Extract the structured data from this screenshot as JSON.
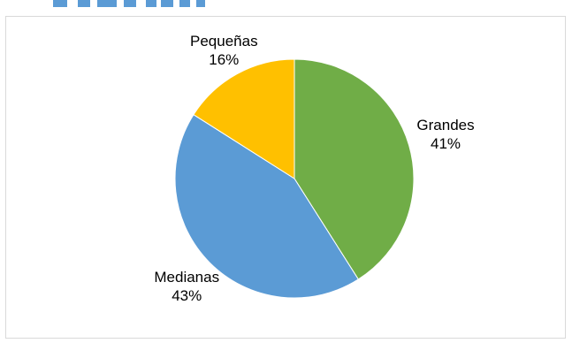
{
  "chart_data": {
    "type": "pie",
    "title": "",
    "categories": [
      "Grandes",
      "Medianas",
      "Pequeñas"
    ],
    "values": [
      41,
      43,
      16
    ],
    "value_labels": [
      "41%",
      "43%",
      "16%"
    ],
    "colors": [
      "#70ad47",
      "#5b9bd5",
      "#ffc000"
    ],
    "start_angle_deg": 0,
    "direction": "clockwise",
    "legend": "none"
  },
  "colors": {
    "title_fragment": "#5b9bd5",
    "border": "#d9d9d9"
  }
}
